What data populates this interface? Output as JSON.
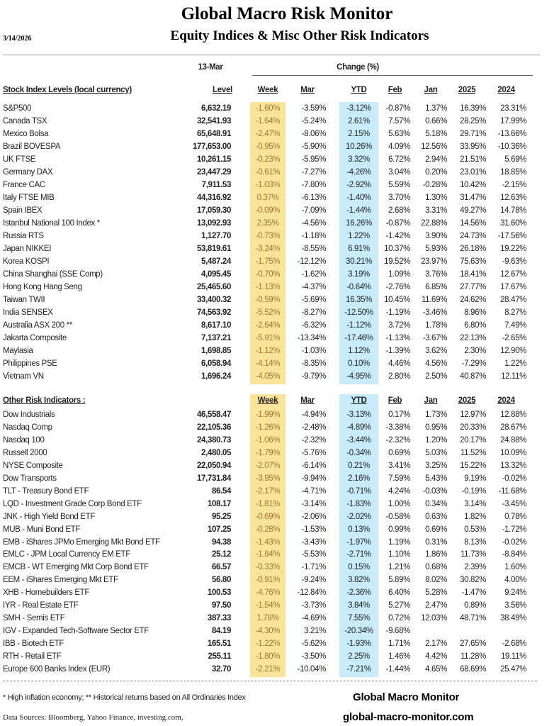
{
  "header": {
    "title": "Global Macro Risk Monitor",
    "subtitle": "Equity Indices & Misc Other Risk Indicators",
    "date": "3/14/2026",
    "as_of": "13-Mar",
    "change_label": "Change (%)"
  },
  "colors": {
    "week_highlight": "#fbe49a",
    "ytd_highlight": "#c9ecfa"
  },
  "columns": [
    "Level",
    "Week",
    "Mar",
    "YTD",
    "Feb",
    "Jan",
    "2025",
    "2024"
  ],
  "sections": [
    {
      "title": "Stock Index Levels (local currency)",
      "rows": [
        [
          "S&P500",
          "6,632.19",
          "-1.60%",
          "-3.59%",
          "-3.12%",
          "-0.87%",
          "1.37%",
          "16.39%",
          "23.31%"
        ],
        [
          "Canada TSX",
          "32,541.93",
          "-1.64%",
          "-5.24%",
          "2.61%",
          "7.57%",
          "0.66%",
          "28.25%",
          "17.99%"
        ],
        [
          "Mexico Bolsa",
          "65,648.91",
          "-2.47%",
          "-8.06%",
          "2.15%",
          "5.63%",
          "5.18%",
          "29.71%",
          "-13.66%"
        ],
        [
          "Brazil BOVESPA",
          "177,653.00",
          "-0.95%",
          "-5.90%",
          "10.26%",
          "4.09%",
          "12.56%",
          "33.95%",
          "-10.36%"
        ],
        [
          "UK FTSE",
          "10,261.15",
          "-0.23%",
          "-5.95%",
          "3.32%",
          "6.72%",
          "2.94%",
          "21.51%",
          "5.69%"
        ],
        [
          "Germany DAX",
          "23,447.29",
          "-0.61%",
          "-7.27%",
          "-4.26%",
          "3.04%",
          "0.20%",
          "23.01%",
          "18.85%"
        ],
        [
          "France CAC",
          "7,911.53",
          "-1.03%",
          "-7.80%",
          "-2.92%",
          "5.59%",
          "-0.28%",
          "10.42%",
          "-2.15%"
        ],
        [
          "Italy FTSE MIB",
          "44,316.92",
          "0.37%",
          "-6.13%",
          "-1.40%",
          "3.70%",
          "1.30%",
          "31.47%",
          "12.63%"
        ],
        [
          "Spain IBEX",
          "17,059.30",
          "-0.09%",
          "-7.09%",
          "-1.44%",
          "2.68%",
          "3.31%",
          "49.27%",
          "14.78%"
        ],
        [
          "Istanbul National 100 Index *",
          "13,092.93",
          "2.35%",
          "-4.56%",
          "16.26%",
          "-0.87%",
          "22.88%",
          "14.56%",
          "31.60%"
        ],
        [
          "Russia RTS",
          "1,127.70",
          "-0.73%",
          "-1.18%",
          "1.22%",
          "-1.42%",
          "3.90%",
          "24.73%",
          "-17.56%"
        ],
        [
          "Japan NIKKEI",
          "53,819.61",
          "-3.24%",
          "-8.55%",
          "6.91%",
          "10.37%",
          "5.93%",
          "26.18%",
          "19.22%"
        ],
        [
          "Korea KOSPI",
          "5,487.24",
          "-1.75%",
          "-12.12%",
          "30.21%",
          "19.52%",
          "23.97%",
          "75.63%",
          "-9.63%"
        ],
        [
          "China Shanghai (SSE Comp)",
          "4,095.45",
          "-0.70%",
          "-1.62%",
          "3.19%",
          "1.09%",
          "3.76%",
          "18.41%",
          "12.67%"
        ],
        [
          "Hong Kong Hang Seng",
          "25,465.60",
          "-1.13%",
          "-4.37%",
          "-0.64%",
          "-2.76%",
          "6.85%",
          "27.77%",
          "17.67%"
        ],
        [
          "Taiwan  TWII",
          "33,400.32",
          "-0.59%",
          "-5.69%",
          "16.35%",
          "10.45%",
          "11.69%",
          "24.62%",
          "28.47%"
        ],
        [
          "India SENSEX",
          "74,563.92",
          "-5.52%",
          "-8.27%",
          "-12.50%",
          "-1.19%",
          "-3.46%",
          "8.96%",
          "8.27%"
        ],
        [
          "Australia ASX 200 **",
          "8,617.10",
          "-2.64%",
          "-6.32%",
          "-1.12%",
          "3.72%",
          "1.78%",
          "6.80%",
          "7.49%"
        ],
        [
          "Jakarta Composite",
          "7,137.21",
          "-5.91%",
          "-13.34%",
          "-17.46%",
          "-1.13%",
          "-3.67%",
          "22.13%",
          "-2.65%"
        ],
        [
          "Maylasia",
          "1,698.85",
          "-1.12%",
          "-1.03%",
          "1.12%",
          "-1.39%",
          "3.62%",
          "2.30%",
          "12.90%"
        ],
        [
          "Philippines PSE",
          "6,058.94",
          "-4.14%",
          "-8.35%",
          "0.10%",
          "4.46%",
          "4.56%",
          "-7.29%",
          "1.22%"
        ],
        [
          "Vietnam VN",
          "1,696.24",
          "-4.05%",
          "-9.79%",
          "-4.95%",
          "2.80%",
          "2.50%",
          "40.87%",
          "12.11%"
        ]
      ]
    },
    {
      "title": "Other Risk Indicators :",
      "rows": [
        [
          "Dow Industrials",
          "46,558.47",
          "-1.99%",
          "-4.94%",
          "-3.13%",
          "0.17%",
          "1.73%",
          "12.97%",
          "12.88%"
        ],
        [
          "Nasdaq Comp",
          "22,105.36",
          "-1.26%",
          "-2.48%",
          "-4.89%",
          "-3.38%",
          "0.95%",
          "20.33%",
          "28.67%"
        ],
        [
          "Nasdaq 100",
          "24,380.73",
          "-1.06%",
          "-2.32%",
          "-3.44%",
          "-2.32%",
          "1.20%",
          "20.17%",
          "24.88%"
        ],
        [
          "Russell 2000",
          "2,480.05",
          "-1.79%",
          "-5.76%",
          "-0.34%",
          "0.69%",
          "5.03%",
          "11.52%",
          "10.09%"
        ],
        [
          "NYSE Composite",
          "22,050.94",
          "-2.07%",
          "-6.14%",
          "0.21%",
          "3.41%",
          "3.25%",
          "15.22%",
          "13.32%"
        ],
        [
          "Dow Transports",
          "17,731.84",
          "-3.95%",
          "-9.94%",
          "2.16%",
          "7.59%",
          "5.43%",
          "9.19%",
          "-0.02%"
        ],
        [
          "TLT - Treasury Bond ETF",
          "86.54",
          "-2.17%",
          "-4.71%",
          "-0.71%",
          "4.24%",
          "-0.03%",
          "-0.19%",
          "-11.68%"
        ],
        [
          "LQD - Investment Grade Corp Bond ETF",
          "108.17",
          "-1.81%",
          "-3.14%",
          "-1.83%",
          "1.00%",
          "0.34%",
          "3.14%",
          "-3.45%"
        ],
        [
          "JNK - High Yield Bond ETF",
          "95.25",
          "-0.69%",
          "-2.06%",
          "-2.02%",
          "-0.58%",
          "0.63%",
          "1.82%",
          "0.78%"
        ],
        [
          "MUB - Muni Bond ETF",
          "107.25",
          "-0.28%",
          "-1.53%",
          "0.13%",
          "0.99%",
          "0.69%",
          "0.53%",
          "-1.72%"
        ],
        [
          "EMB - iShares JPMo Emerging Mkt Bond ETF",
          "94.38",
          "-1.43%",
          "-3.43%",
          "-1.97%",
          "1.19%",
          "0.31%",
          "8.13%",
          "-0.02%"
        ],
        [
          "EMLC - JPM Local Currency EM ETF",
          "25.12",
          "-1.84%",
          "-5.53%",
          "-2.71%",
          "1.10%",
          "1.86%",
          "11.73%",
          "-8.84%"
        ],
        [
          "EMCB - WT Emerging Mkt Corp Bond ETF",
          "66.57",
          "-0.33%",
          "-1.71%",
          "0.15%",
          "1.21%",
          "0.68%",
          "2.39%",
          "1.60%"
        ],
        [
          "EEM - iShares Emerging Mkt ETF",
          "56.80",
          "-0.91%",
          "-9.24%",
          "3.82%",
          "5.89%",
          "8.02%",
          "30.82%",
          "4.00%"
        ],
        [
          "XHB - Homebuilders ETF",
          "100.53",
          "-4.76%",
          "-12.84%",
          "-2.36%",
          "6.40%",
          "5.28%",
          "-1.47%",
          "9.24%"
        ],
        [
          "IYR - Real Estate ETF",
          "97.50",
          "-1.54%",
          "-3.73%",
          "3.84%",
          "5.27%",
          "2.47%",
          "0.89%",
          "3.56%"
        ],
        [
          "SMH - Semis ETF",
          "387.33",
          "1.78%",
          "-4.69%",
          "7.55%",
          "0.72%",
          "12.03%",
          "48.71%",
          "38.49%"
        ],
        [
          "IGV - Expanded Tech-Software Sector ETF",
          "84.19",
          "-4.30%",
          "3.21%",
          "-20.34%",
          "-9.68%",
          "",
          "",
          ""
        ],
        [
          "IBB - Biotech ETF",
          "165.51",
          "-1.22%",
          "-5.62%",
          "-1.93%",
          "1.71%",
          "2.17%",
          "27.65%",
          "-2.68%"
        ],
        [
          "RTH - Retail ETF",
          "255.11",
          "-1.80%",
          "-3.50%",
          "2.25%",
          "1.46%",
          "4.42%",
          "11.28%",
          "19.11%"
        ],
        [
          "Europe 600 Banks Index (EUR)",
          "32.70",
          "-2.21%",
          "-10.04%",
          "-7.21%",
          "-1.44%",
          "4.65%",
          "68.69%",
          "25.47%"
        ]
      ]
    }
  ],
  "footer": {
    "notes": "*  High inflation economy;  **  Historical returns based on All Ordinaries Index",
    "sources": "Data Sources:  Bloomberg,  Yahoo Finance, investing.com,",
    "brand": "Global Macro Monitor",
    "website": "global-macro-monitor.com"
  }
}
